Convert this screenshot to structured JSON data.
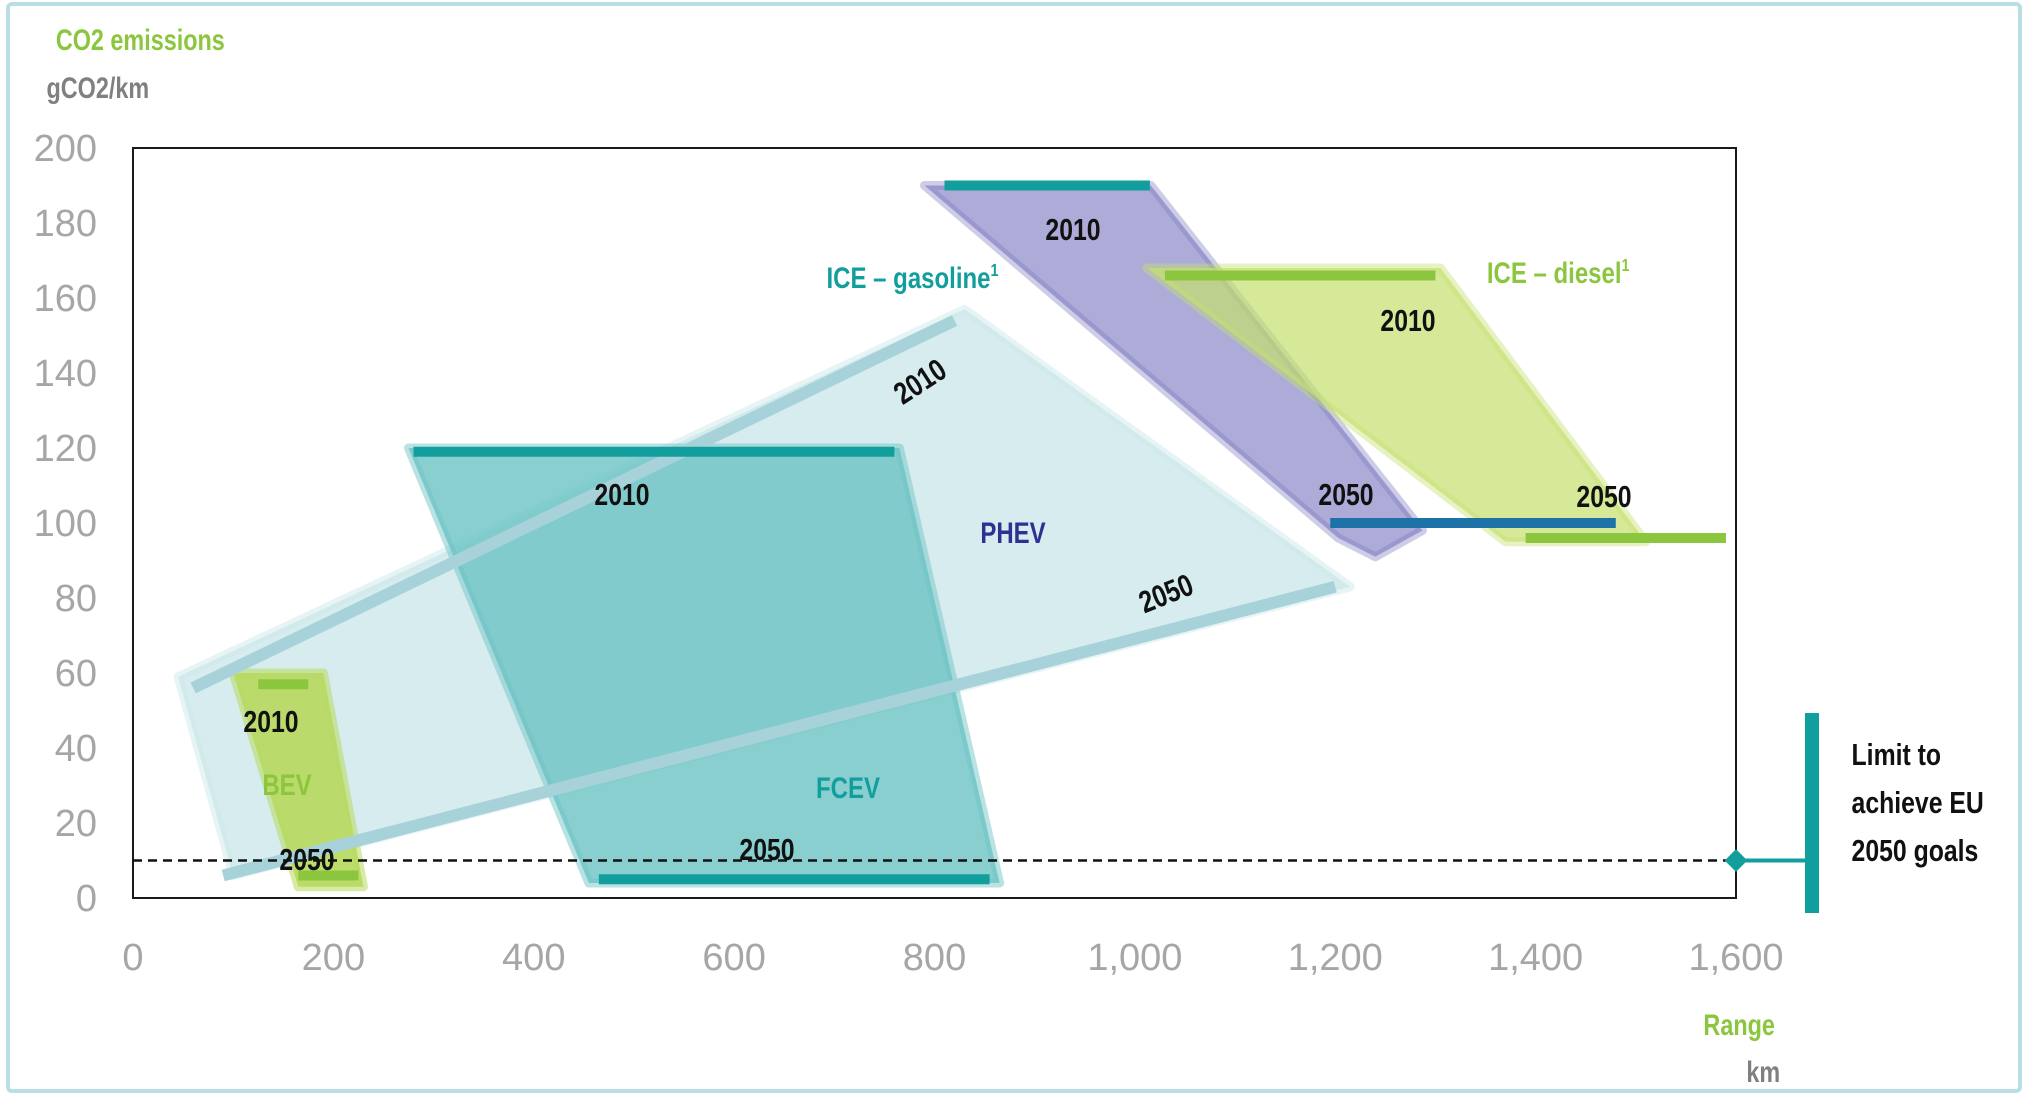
{
  "chart_data": {
    "type": "area",
    "y_axis": {
      "label": "CO2 emissions",
      "unit": "gCO2/km",
      "range": [
        0,
        200
      ],
      "ticks": [
        0,
        20,
        40,
        60,
        80,
        100,
        120,
        140,
        160,
        180,
        200
      ]
    },
    "x_axis": {
      "label": "Range",
      "unit": "km",
      "range": [
        0,
        1600
      ],
      "ticks": [
        "0",
        "200",
        "400",
        "600",
        "800",
        "1,000",
        "1,200",
        "1,400",
        "1,600"
      ]
    },
    "grid": false,
    "reference_line": {
      "y": 10,
      "style": "dashed",
      "label": "Limit to achieve EU 2050 goals"
    },
    "technologies": [
      {
        "name": "ICE – gasoline",
        "footnote": "1",
        "color": "#7b78bf",
        "label_color": "#139e9e",
        "region": [
          [
            790,
            190
          ],
          [
            1016,
            190
          ],
          [
            1287,
            98
          ],
          [
            1240,
            91
          ],
          [
            1203,
            96
          ]
        ],
        "years": [
          {
            "year": "2010",
            "range_km": [
              810,
              1015
            ],
            "co2": 190
          },
          {
            "year": "2050",
            "range_km": [
              1195,
              1480
            ],
            "co2": 100
          }
        ]
      },
      {
        "name": "ICE – diesel",
        "footnote": "1",
        "color": "#c5e06e",
        "label_color": "#8cc63f",
        "region": [
          [
            1012,
            168
          ],
          [
            1305,
            168
          ],
          [
            1510,
            95
          ],
          [
            1370,
            95
          ]
        ],
        "years": [
          {
            "year": "2010",
            "range_km": [
              1030,
              1300
            ],
            "co2": 166
          },
          {
            "year": "2050",
            "range_km": [
              1390,
              1590
            ],
            "co2": 96
          }
        ]
      },
      {
        "name": "PHEV",
        "color": "#cce7ea",
        "label_color": "#2e3192",
        "region": [
          [
            45,
            59
          ],
          [
            830,
            157
          ],
          [
            1215,
            83
          ],
          [
            100,
            6
          ]
        ],
        "years": [
          {
            "year": "2010",
            "from": [
              60,
              56
            ],
            "to": [
              820,
              154
            ]
          },
          {
            "year": "2050",
            "from": [
              90,
              6
            ],
            "to": [
              1200,
              83
            ]
          }
        ]
      },
      {
        "name": "FCEV",
        "color": "#6cc3c4",
        "label_color": "#139e9e",
        "region": [
          [
            275,
            120
          ],
          [
            765,
            120
          ],
          [
            865,
            4
          ],
          [
            455,
            4
          ]
        ],
        "years": [
          {
            "year": "2010",
            "range_km": [
              280,
              760
            ],
            "co2": 119
          },
          {
            "year": "2050",
            "range_km": [
              465,
              855
            ],
            "co2": 5
          }
        ]
      },
      {
        "name": "BEV",
        "color": "#b8da63",
        "label_color": "#8cc63f",
        "region": [
          [
            100,
            60
          ],
          [
            190,
            60
          ],
          [
            230,
            3
          ],
          [
            165,
            3
          ]
        ],
        "years": [
          {
            "year": "2010",
            "range_km": [
              125,
              175
            ],
            "co2": 57
          },
          {
            "year": "2050",
            "range_km": [
              165,
              225
            ],
            "co2": 6
          }
        ]
      }
    ]
  }
}
